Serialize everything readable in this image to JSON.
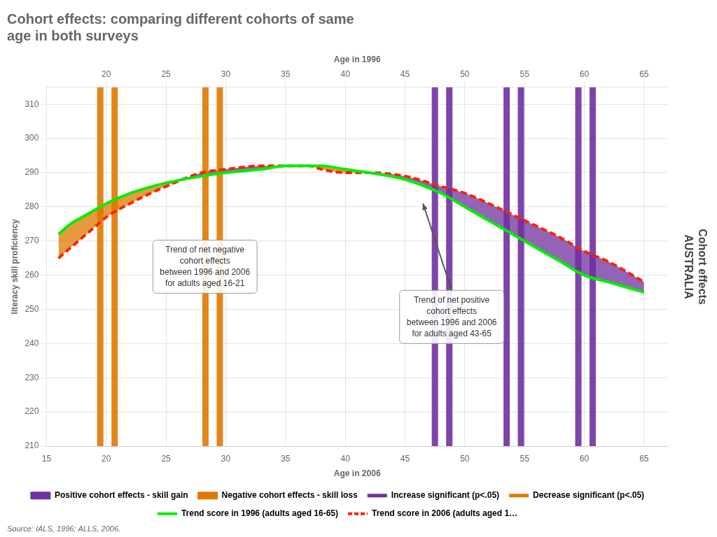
{
  "chart_data": {
    "type": "line",
    "title": [
      "Cohort effects: comparing different cohorts of same",
      "age in both surveys"
    ],
    "ylabel": "literacy skill proficiency",
    "xlabel": "Age in 2006",
    "x2label": "Age in 1996",
    "ylim": [
      210,
      315
    ],
    "yticks": [
      210,
      220,
      230,
      240,
      250,
      260,
      270,
      280,
      290,
      300,
      310
    ],
    "xlim": [
      15,
      67
    ],
    "xticks": [
      15,
      20,
      25,
      30,
      35,
      40,
      45,
      50,
      55,
      60,
      65
    ],
    "x2lim": [
      15,
      67
    ],
    "x2ticks": [
      20,
      25,
      30,
      35,
      40,
      45,
      50,
      55,
      60,
      65
    ],
    "grid": true,
    "series": [
      {
        "name": "Trend score in 1996 (adults aged 16-65)",
        "color": "#00ee00",
        "line_style": "solid",
        "x": [
          16,
          17,
          18,
          19,
          20,
          22,
          25,
          28,
          30,
          33,
          35,
          37,
          38,
          40,
          42,
          45,
          48,
          50,
          52,
          55,
          58,
          60,
          62,
          65
        ],
        "values": [
          272,
          275,
          277,
          279,
          281,
          284,
          287,
          289,
          290,
          291,
          292,
          292,
          292,
          291,
          290,
          288,
          284,
          280,
          276,
          270,
          264,
          260,
          258,
          255
        ]
      },
      {
        "name": "Trend score in 2006 (adults aged 1…",
        "color": "#ff2200",
        "line_style": "dashed",
        "x": [
          16,
          17,
          18,
          19,
          20,
          22,
          25,
          28,
          30,
          33,
          35,
          37,
          38,
          40,
          42,
          45,
          48,
          50,
          52,
          55,
          58,
          60,
          62,
          65
        ],
        "values": [
          265,
          268,
          271,
          274,
          277,
          281,
          286,
          290,
          291,
          292,
          292,
          292,
          291,
          290,
          290,
          289,
          286,
          284,
          281,
          276,
          271,
          267,
          264,
          258
        ]
      }
    ],
    "areas": [
      {
        "name": "Positive cohort effects - skill gain",
        "color": "#7030a0"
      },
      {
        "name": "Negative cohort effects - skill loss",
        "color": "#e07800"
      }
    ],
    "vlines": [
      {
        "name": "Increase significant (p<.05)",
        "color": "#7030a0",
        "x": [
          47.5,
          48.7,
          53.5,
          54.7,
          59.5,
          60.7
        ]
      },
      {
        "name": "Decrease significant (p<.05)",
        "color": "#e07800",
        "x": [
          19.5,
          20.7,
          28.3,
          29.5
        ]
      }
    ],
    "annotations": [
      {
        "text": "Trend of net negative\ncohort effects\nbetween 1996 and 2006\nfor adults aged 16-21"
      },
      {
        "text": "Trend of net positive\ncohort effects\nbetween 1996 and 2006\nfor adults aged 43-65",
        "arrow_to": {
          "x": 46.5,
          "y": 281
        }
      }
    ],
    "side_label": "Cohort effects\nAUSTRALIA",
    "source": "Source: IALS, 1996; ALLS, 2006."
  }
}
